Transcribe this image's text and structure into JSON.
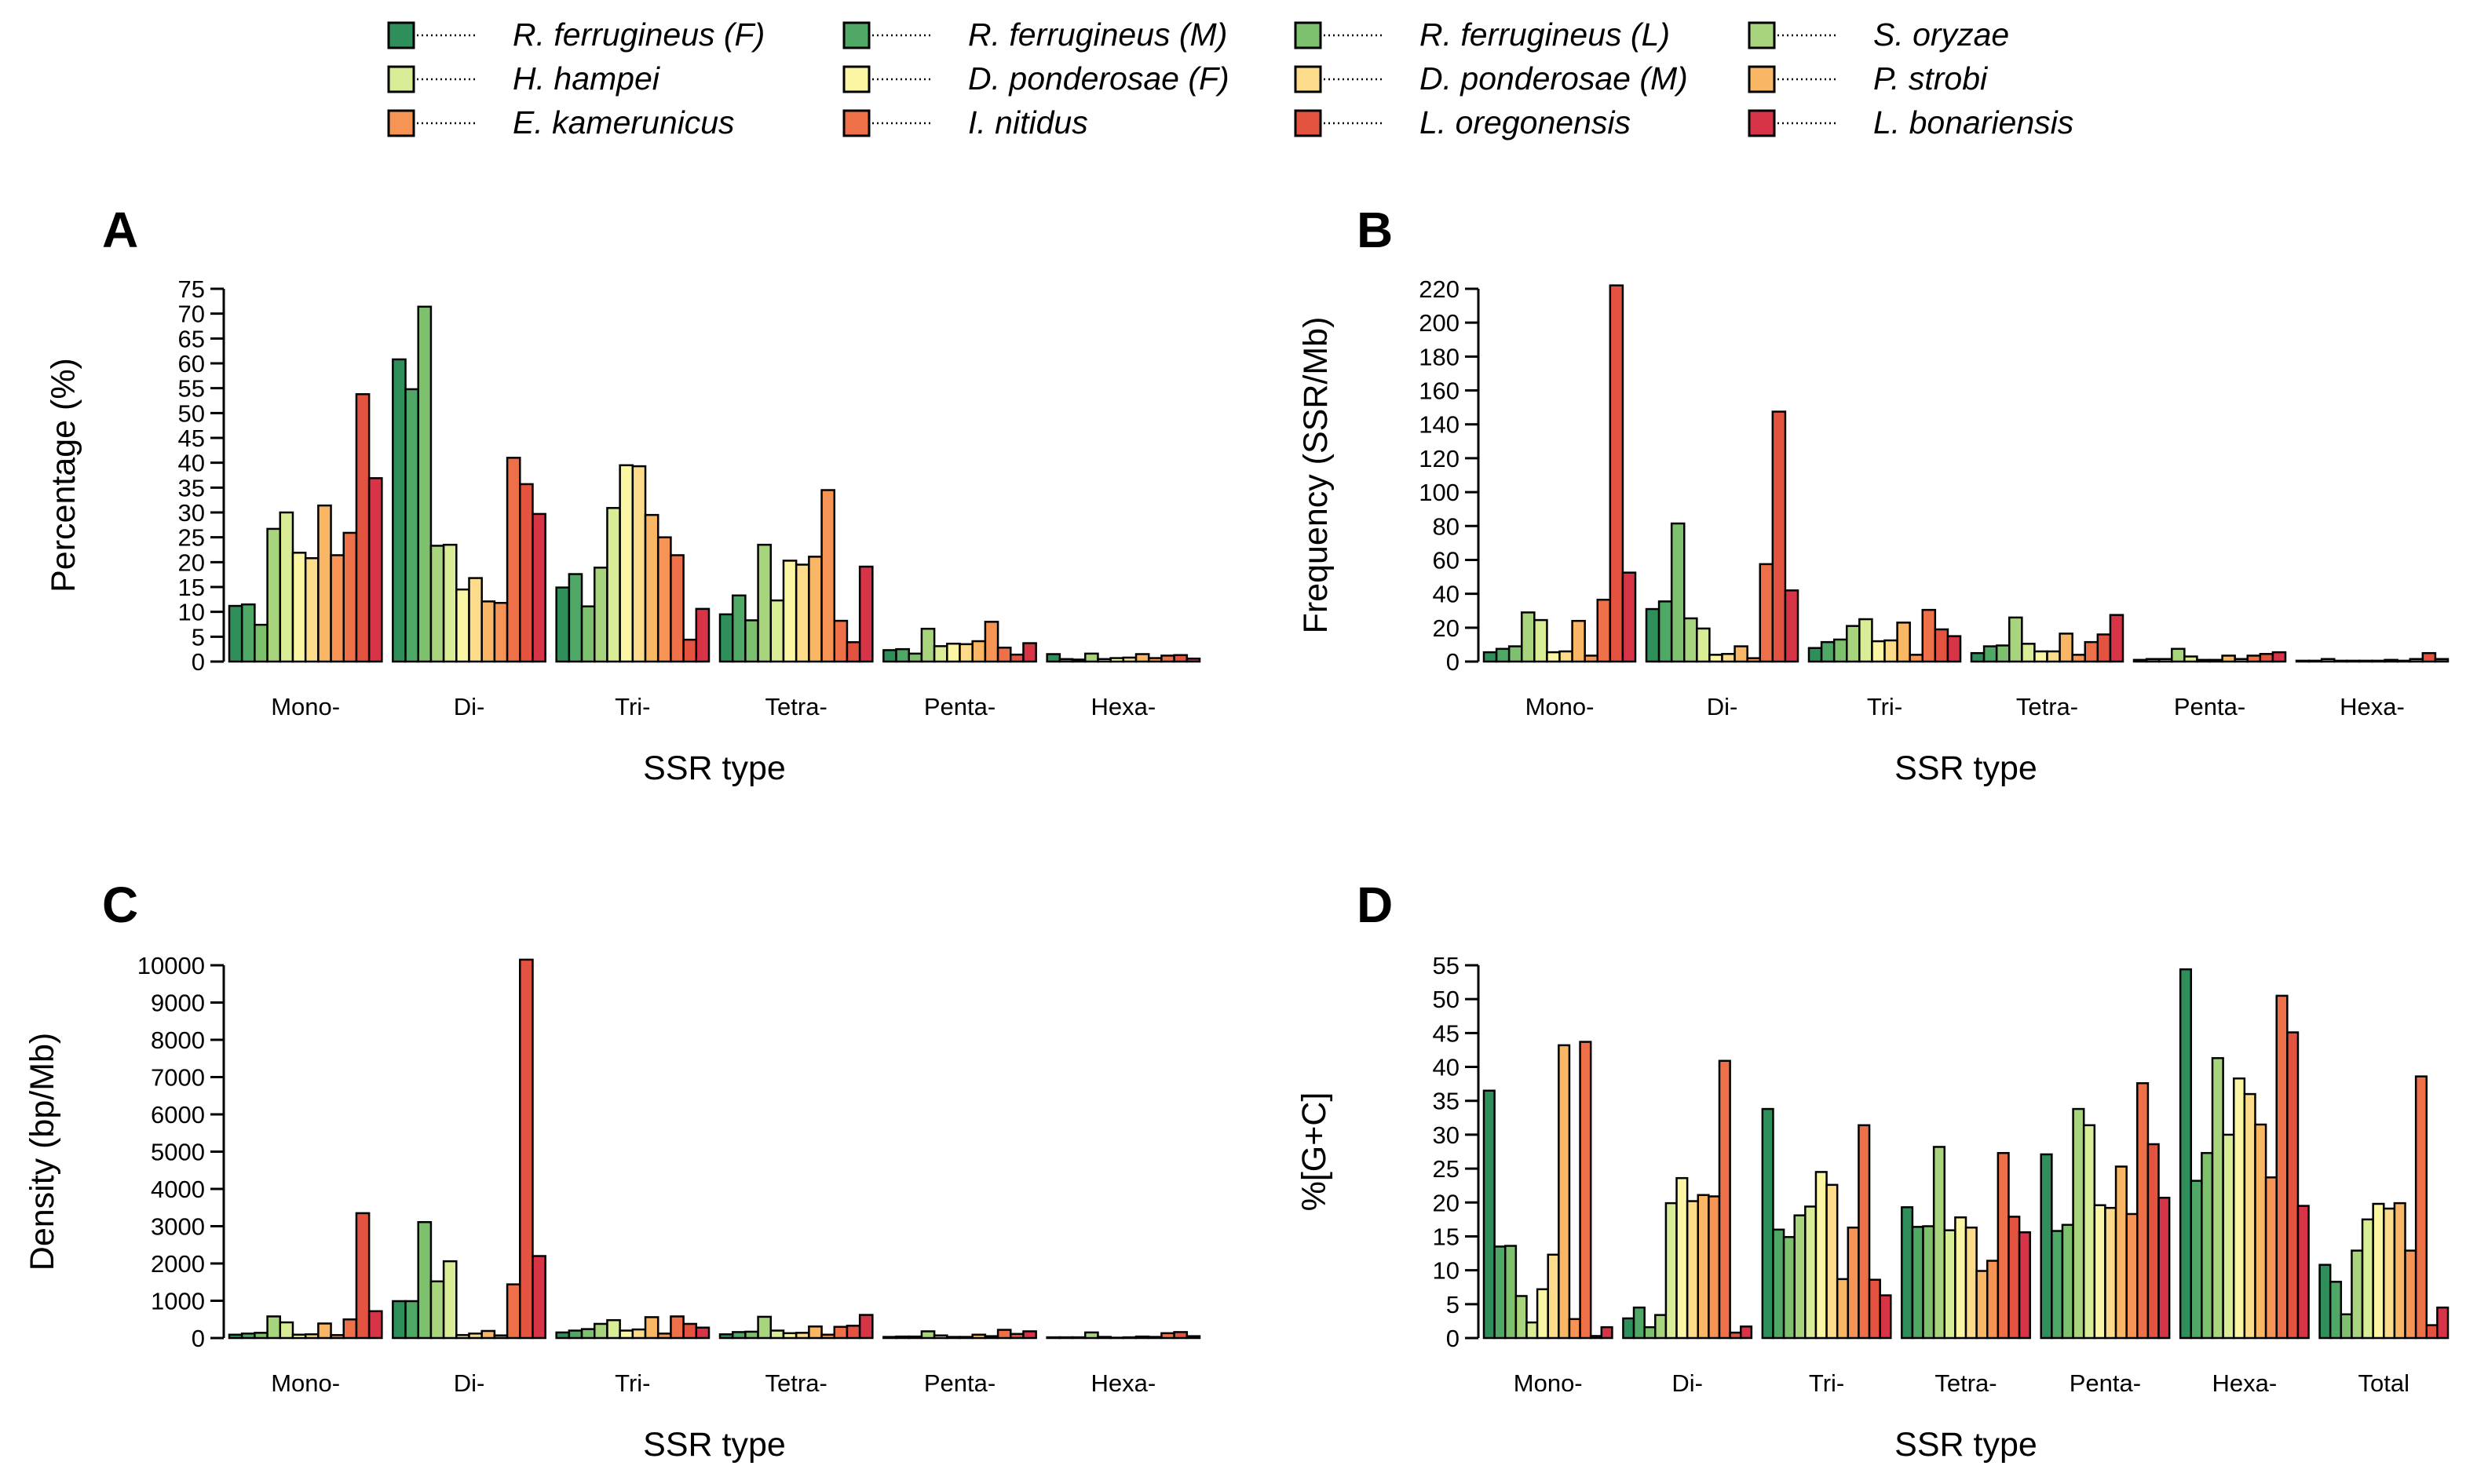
{
  "legend": {
    "entries": [
      {
        "name": "R. ferrugineus (F)",
        "color": "#2F8F5B"
      },
      {
        "name": "R. ferrugineus (M)",
        "color": "#4FA866"
      },
      {
        "name": "R. ferrugineus (L)",
        "color": "#7DC16E"
      },
      {
        "name": "S. oryzae",
        "color": "#A8D47E"
      },
      {
        "name": "H. hampei",
        "color": "#D8ED96"
      },
      {
        "name": "D. ponderosae (F)",
        "color": "#FBF6A4"
      },
      {
        "name": "D. ponderosae (M)",
        "color": "#FCDB8A"
      },
      {
        "name": "P. strobi",
        "color": "#F9B765"
      },
      {
        "name": "E. kamerunicus",
        "color": "#F69455"
      },
      {
        "name": "I. nitidus",
        "color": "#EE7048"
      },
      {
        "name": "L. oregonensis",
        "color": "#E4533F"
      },
      {
        "name": "L. bonariensis",
        "color": "#D83447"
      }
    ]
  },
  "chart_data": [
    {
      "panel": "A",
      "type": "bar",
      "ylabel": "Percentage (%)",
      "xlabel": "SSR type",
      "ylim": [
        0,
        75
      ],
      "yticks": [
        0,
        5,
        10,
        15,
        20,
        25,
        30,
        35,
        40,
        45,
        50,
        55,
        60,
        65,
        70,
        75
      ],
      "categories": [
        "Mono-",
        "Di-",
        "Tri-",
        "Tetra-",
        "Penta-",
        "Hexa-"
      ],
      "values": [
        [
          11.2,
          11.5,
          7.4,
          26.7,
          30.0,
          21.9,
          20.8,
          31.4,
          21.4,
          25.9,
          53.8,
          36.9
        ],
        [
          60.8,
          54.8,
          71.4,
          23.3,
          23.5,
          14.5,
          16.8,
          12.1,
          11.8,
          41.0,
          35.7,
          29.7
        ],
        [
          14.9,
          17.6,
          11.1,
          18.9,
          30.9,
          39.5,
          39.3,
          29.5,
          25.0,
          21.4,
          4.4,
          10.6
        ],
        [
          9.5,
          13.3,
          8.3,
          23.5,
          12.3,
          20.3,
          19.5,
          21.1,
          34.5,
          8.2,
          3.9,
          19.1
        ],
        [
          2.3,
          2.5,
          1.6,
          6.6,
          3.1,
          3.6,
          3.5,
          4.1,
          8.0,
          2.8,
          1.4,
          3.7
        ],
        [
          1.5,
          0.5,
          0.4,
          1.6,
          0.5,
          0.7,
          0.8,
          1.5,
          0.7,
          1.2,
          1.3,
          0.6
        ]
      ]
    },
    {
      "panel": "B",
      "type": "bar",
      "ylabel": "Frequency (SSR/Mb)",
      "xlabel": "SSR type",
      "ylim": [
        0,
        220
      ],
      "yticks": [
        0,
        20,
        40,
        60,
        80,
        100,
        120,
        140,
        160,
        180,
        200,
        220
      ],
      "categories": [
        "Mono-",
        "Di-",
        "Tri-",
        "Tetra-",
        "Penta-",
        "Hexa-"
      ],
      "values": [
        [
          5.5,
          7.5,
          9.0,
          29.0,
          24.5,
          5.5,
          6.0,
          24.0,
          3.5,
          36.5,
          222.0,
          52.5
        ],
        [
          31.0,
          35.5,
          81.5,
          25.5,
          19.5,
          4.0,
          4.5,
          9.0,
          2.0,
          57.5,
          147.5,
          42.0
        ],
        [
          8.0,
          11.5,
          13.0,
          21.0,
          25.0,
          12.0,
          12.5,
          23.0,
          4.0,
          30.5,
          19.0,
          15.0
        ],
        [
          5.0,
          9.0,
          9.5,
          26.0,
          10.5,
          6.0,
          6.0,
          16.5,
          4.0,
          11.5,
          16.0,
          27.5
        ],
        [
          1.0,
          1.5,
          1.5,
          7.5,
          3.0,
          1.0,
          1.0,
          3.5,
          1.5,
          3.5,
          4.5,
          5.5
        ],
        [
          0.5,
          0.5,
          1.5,
          0.5,
          0.5,
          0.5,
          0.5,
          1.0,
          0.5,
          1.5,
          5.0,
          1.5
        ]
      ]
    },
    {
      "panel": "C",
      "type": "bar",
      "ylabel": "Density (bp/Mb)",
      "xlabel": "SSR type",
      "ylim": [
        0,
        10000
      ],
      "yticks": [
        0,
        1000,
        2000,
        3000,
        4000,
        5000,
        6000,
        7000,
        8000,
        9000,
        10000
      ],
      "categories": [
        "Mono-",
        "Di-",
        "Tri-",
        "Tetra-",
        "Penta-",
        "Hexa-"
      ],
      "values": [
        [
          90,
          120,
          140,
          580,
          420,
          90,
          100,
          390,
          80,
          500,
          3350,
          720
        ],
        [
          990,
          990,
          3110,
          1520,
          2060,
          80,
          120,
          190,
          70,
          1440,
          10150,
          2200
        ],
        [
          150,
          200,
          240,
          380,
          480,
          200,
          230,
          560,
          120,
          580,
          380,
          280
        ],
        [
          100,
          160,
          170,
          570,
          200,
          130,
          140,
          310,
          90,
          300,
          330,
          620
        ],
        [
          30,
          40,
          40,
          180,
          70,
          30,
          30,
          90,
          50,
          220,
          110,
          180
        ],
        [
          20,
          20,
          20,
          150,
          30,
          10,
          20,
          40,
          30,
          130,
          160,
          50
        ]
      ]
    },
    {
      "panel": "D",
      "type": "bar",
      "ylabel": "%[G+C]",
      "xlabel": "SSR type",
      "ylim": [
        0,
        55
      ],
      "yticks": [
        0,
        5,
        10,
        15,
        20,
        25,
        30,
        35,
        40,
        45,
        50,
        55
      ],
      "categories": [
        "Mono-",
        "Di-",
        "Tri-",
        "Tetra-",
        "Penta-",
        "Hexa-",
        "Total"
      ],
      "values": [
        [
          36.5,
          13.5,
          13.6,
          6.2,
          2.3,
          7.2,
          12.3,
          43.2,
          2.8,
          43.7,
          0.3,
          1.6
        ],
        [
          2.9,
          4.5,
          1.6,
          3.4,
          19.9,
          23.6,
          20.2,
          21.1,
          20.9,
          40.9,
          0.8,
          1.7
        ],
        [
          33.8,
          16.0,
          14.9,
          18.1,
          19.4,
          24.5,
          22.6,
          8.7,
          16.3,
          31.4,
          8.6,
          6.3
        ],
        [
          19.3,
          16.4,
          16.5,
          28.2,
          15.9,
          17.8,
          16.3,
          9.9,
          11.4,
          27.3,
          17.9,
          15.6
        ],
        [
          27.1,
          15.8,
          16.7,
          33.8,
          31.4,
          19.6,
          19.2,
          25.3,
          18.3,
          37.6,
          28.6,
          20.7
        ],
        [
          54.4,
          23.2,
          27.3,
          41.3,
          30.0,
          38.3,
          36.0,
          31.5,
          23.7,
          50.5,
          45.1,
          19.5
        ],
        [
          10.8,
          8.3,
          3.5,
          12.9,
          17.5,
          19.8,
          19.1,
          19.9,
          12.9,
          38.6,
          1.9,
          4.5
        ]
      ]
    }
  ]
}
